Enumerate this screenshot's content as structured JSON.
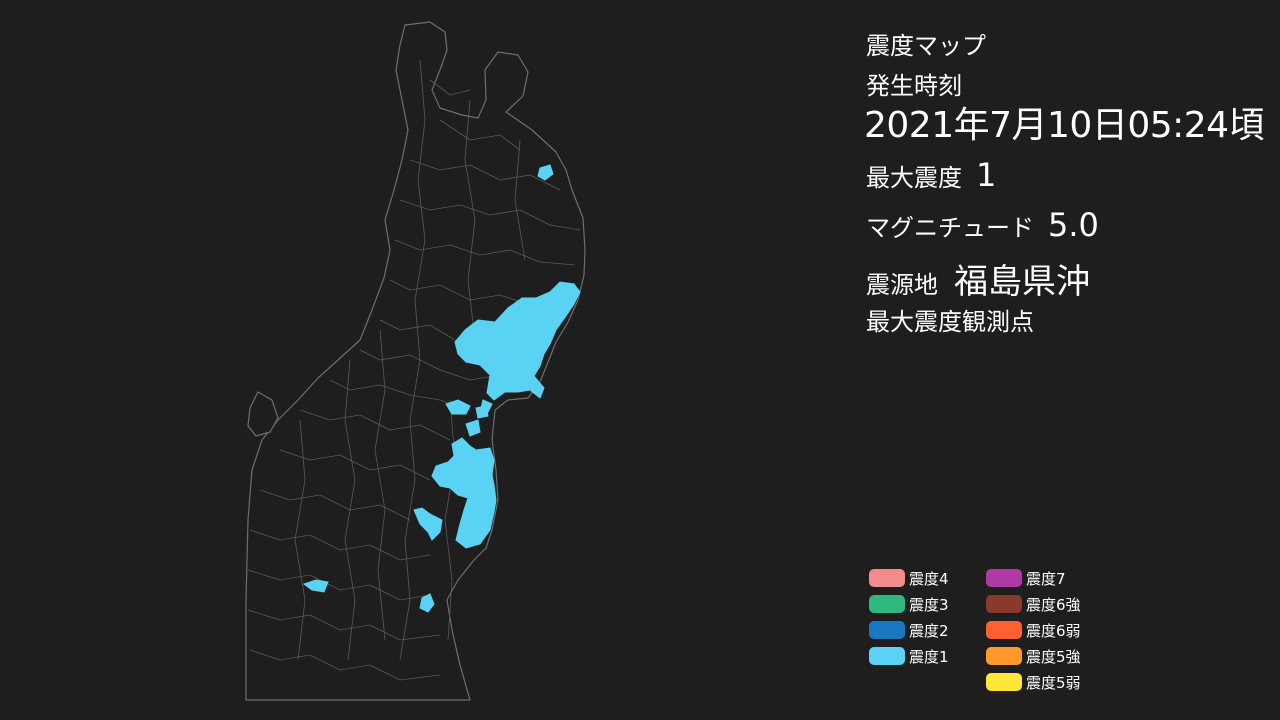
{
  "info": {
    "title": "震度マップ",
    "occurrence_label": "発生時刻",
    "occurrence_time": "2021年7月10日05:24頃",
    "max_intensity_label": "最大震度",
    "max_intensity_value": "1",
    "magnitude_label": "マグニチュード",
    "magnitude_value": "5.0",
    "epicenter_label": "震源地",
    "epicenter_value": "福島県沖",
    "observation_label": "最大震度観測点"
  },
  "legend": {
    "left": [
      {
        "label": "震度4",
        "color": "#f28b8b"
      },
      {
        "label": "震度3",
        "color": "#2eb87e"
      },
      {
        "label": "震度2",
        "color": "#1a78c2"
      },
      {
        "label": "震度1",
        "color": "#5ad2f4"
      }
    ],
    "right": [
      {
        "label": "震度7",
        "color": "#b03aa5"
      },
      {
        "label": "震度6強",
        "color": "#8a3a2a"
      },
      {
        "label": "震度6弱",
        "color": "#ff6030"
      },
      {
        "label": "震度5強",
        "color": "#ff9a2a"
      },
      {
        "label": "震度5弱",
        "color": "#ffe73a"
      }
    ]
  },
  "map": {
    "background_color": "#1e1e1e",
    "boundary_color": "#6e6e6e",
    "intensity1_color": "#5ad2f4"
  }
}
